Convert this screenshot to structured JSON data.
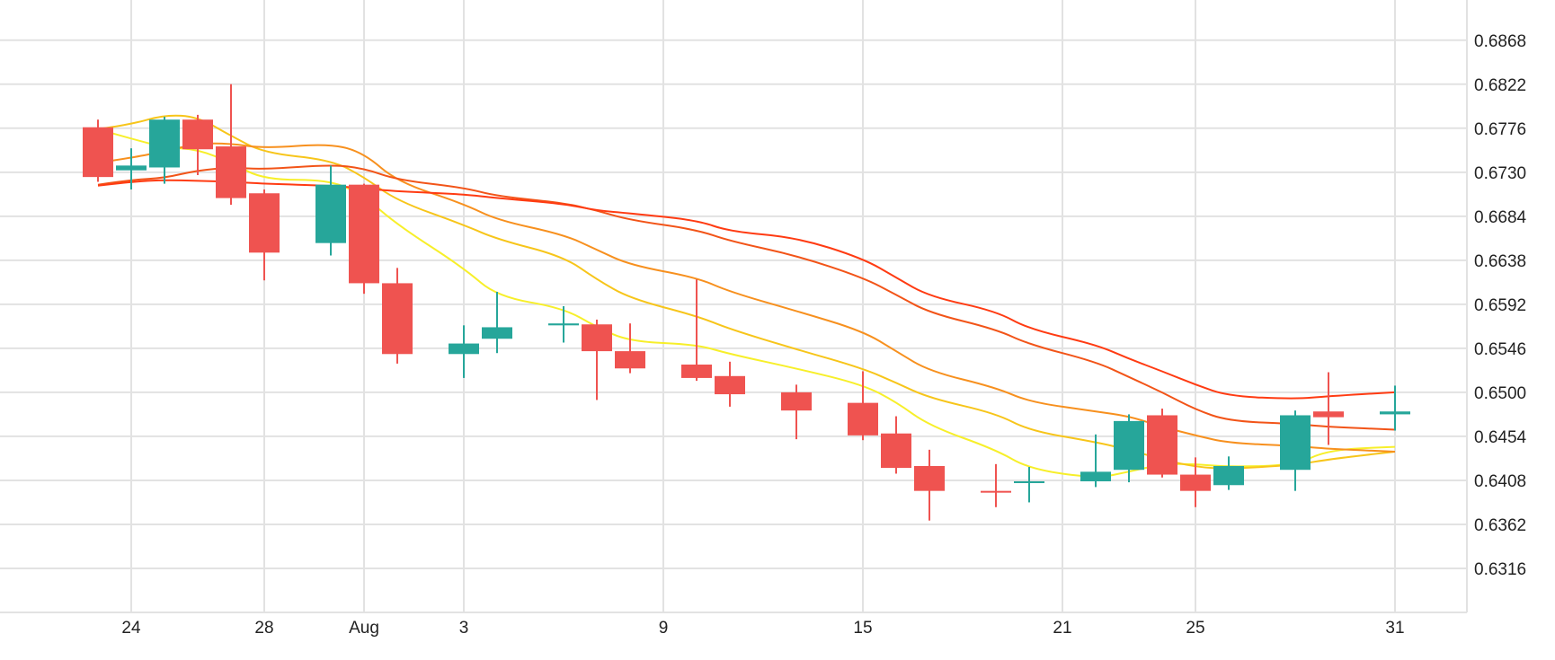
{
  "chart_data": {
    "type": "candlestick",
    "grid": true,
    "y_axis_side": "right",
    "y_ticks": [
      "0.6868",
      "0.6822",
      "0.6776",
      "0.6730",
      "0.6684",
      "0.6638",
      "0.6592",
      "0.6546",
      "0.6500",
      "0.6454",
      "0.6408",
      "0.6362",
      "0.6316"
    ],
    "x_ticks": [
      "24",
      "28",
      "Aug",
      "3",
      "9",
      "15",
      "21",
      "25",
      "31"
    ],
    "ylim": [
      0.627,
      0.691
    ],
    "colors": {
      "up": "#26a69a",
      "down": "#ef5350",
      "grid": "#e2e2e2"
    },
    "candles": [
      {
        "date": "Jul 23",
        "open": 0.6777,
        "high": 0.6785,
        "low": 0.672,
        "close": 0.6725
      },
      {
        "date": "Jul 24",
        "open": 0.6732,
        "high": 0.6755,
        "low": 0.6712,
        "close": 0.6737
      },
      {
        "date": "Jul 25",
        "open": 0.6735,
        "high": 0.6788,
        "low": 0.6718,
        "close": 0.6785
      },
      {
        "date": "Jul 26",
        "open": 0.6785,
        "high": 0.679,
        "low": 0.6727,
        "close": 0.6754
      },
      {
        "date": "Jul 27",
        "open": 0.6757,
        "high": 0.6822,
        "low": 0.6696,
        "close": 0.6703
      },
      {
        "date": "Jul 28",
        "open": 0.6708,
        "high": 0.6712,
        "low": 0.6617,
        "close": 0.6646
      },
      {
        "date": "Jul 30",
        "open": 0.6656,
        "high": 0.6737,
        "low": 0.6643,
        "close": 0.6717
      },
      {
        "date": "Jul 31",
        "open": 0.6717,
        "high": 0.6718,
        "low": 0.6603,
        "close": 0.6614
      },
      {
        "date": "Aug 1",
        "open": 0.6614,
        "high": 0.663,
        "low": 0.653,
        "close": 0.654
      },
      {
        "date": "Aug 3",
        "open": 0.654,
        "high": 0.657,
        "low": 0.6515,
        "close": 0.6551
      },
      {
        "date": "Aug 4",
        "open": 0.6556,
        "high": 0.6605,
        "low": 0.6541,
        "close": 0.6568
      },
      {
        "date": "Aug 6",
        "open": 0.657,
        "high": 0.659,
        "low": 0.6552,
        "close": 0.6572
      },
      {
        "date": "Aug 7",
        "open": 0.6571,
        "high": 0.6576,
        "low": 0.6492,
        "close": 0.6543
      },
      {
        "date": "Aug 8",
        "open": 0.6543,
        "high": 0.6572,
        "low": 0.652,
        "close": 0.6525
      },
      {
        "date": "Aug 10",
        "open": 0.6529,
        "high": 0.6618,
        "low": 0.6512,
        "close": 0.6515
      },
      {
        "date": "Aug 11",
        "open": 0.6517,
        "high": 0.6532,
        "low": 0.6485,
        "close": 0.6498
      },
      {
        "date": "Aug 13",
        "open": 0.65,
        "high": 0.6508,
        "low": 0.6451,
        "close": 0.6481
      },
      {
        "date": "Aug 15",
        "open": 0.6489,
        "high": 0.6522,
        "low": 0.645,
        "close": 0.6455
      },
      {
        "date": "Aug 16",
        "open": 0.6457,
        "high": 0.6475,
        "low": 0.6415,
        "close": 0.6421
      },
      {
        "date": "Aug 17",
        "open": 0.6423,
        "high": 0.644,
        "low": 0.6366,
        "close": 0.6397
      },
      {
        "date": "Aug 19",
        "open": 0.6397,
        "high": 0.6425,
        "low": 0.638,
        "close": 0.6396
      },
      {
        "date": "Aug 20",
        "open": 0.6406,
        "high": 0.6422,
        "low": 0.6385,
        "close": 0.6407
      },
      {
        "date": "Aug 22",
        "open": 0.6407,
        "high": 0.6456,
        "low": 0.6401,
        "close": 0.6417
      },
      {
        "date": "Aug 23",
        "open": 0.6419,
        "high": 0.6477,
        "low": 0.6406,
        "close": 0.647
      },
      {
        "date": "Aug 24",
        "open": 0.6476,
        "high": 0.6483,
        "low": 0.6411,
        "close": 0.6414
      },
      {
        "date": "Aug 25",
        "open": 0.6414,
        "high": 0.6432,
        "low": 0.638,
        "close": 0.6397
      },
      {
        "date": "Aug 26",
        "open": 0.6403,
        "high": 0.6433,
        "low": 0.6398,
        "close": 0.6423
      },
      {
        "date": "Aug 28",
        "open": 0.6419,
        "high": 0.6481,
        "low": 0.6397,
        "close": 0.6476
      },
      {
        "date": "Aug 29",
        "open": 0.648,
        "high": 0.6521,
        "low": 0.6445,
        "close": 0.6474
      },
      {
        "date": "Aug 31",
        "open": 0.6477,
        "high": 0.6507,
        "low": 0.646,
        "close": 0.648
      }
    ],
    "moving_averages": [
      {
        "color": "#f7ef2a",
        "values": [
          0.6775,
          0.6765,
          0.6756,
          0.6754,
          0.674,
          0.6722,
          0.6722,
          0.6705,
          0.6675,
          0.663,
          0.66,
          0.6588,
          0.6568,
          0.6553,
          0.655,
          0.654,
          0.6525,
          0.6508,
          0.649,
          0.6465,
          0.644,
          0.642,
          0.641,
          0.6417,
          0.6425,
          0.6425,
          0.6422,
          0.6424,
          0.644,
          0.6443
        ]
      },
      {
        "color": "#f7c51a",
        "values": [
          0.6775,
          0.678,
          0.679,
          0.6788,
          0.6768,
          0.675,
          0.6743,
          0.6725,
          0.67,
          0.6675,
          0.666,
          0.6642,
          0.6618,
          0.6598,
          0.658,
          0.6566,
          0.6545,
          0.6525,
          0.651,
          0.6494,
          0.6478,
          0.646,
          0.6448,
          0.644,
          0.643,
          0.6422,
          0.642,
          0.6424,
          0.643,
          0.6438
        ]
      },
      {
        "color": "#f7901e",
        "values": [
          0.674,
          0.6745,
          0.6752,
          0.676,
          0.676,
          0.6755,
          0.676,
          0.675,
          0.672,
          0.6697,
          0.668,
          0.6665,
          0.6649,
          0.6633,
          0.662,
          0.6605,
          0.6585,
          0.6564,
          0.6543,
          0.6522,
          0.6505,
          0.649,
          0.648,
          0.6475,
          0.6464,
          0.6455,
          0.6447,
          0.6444,
          0.6441,
          0.6438
        ]
      },
      {
        "color": "#f25418",
        "values": [
          0.6717,
          0.6722,
          0.6724,
          0.6732,
          0.6735,
          0.6733,
          0.6738,
          0.6734,
          0.6722,
          0.6714,
          0.6705,
          0.6698,
          0.669,
          0.668,
          0.667,
          0.6658,
          0.6643,
          0.662,
          0.6602,
          0.6583,
          0.6566,
          0.655,
          0.6532,
          0.6516,
          0.65,
          0.6482,
          0.647,
          0.6467,
          0.6464,
          0.6461
        ]
      },
      {
        "color": "#ff3b12",
        "values": [
          0.6716,
          0.672,
          0.6722,
          0.6721,
          0.672,
          0.6718,
          0.6716,
          0.6713,
          0.671,
          0.6707,
          0.6703,
          0.6697,
          0.669,
          0.6687,
          0.668,
          0.6668,
          0.6662,
          0.664,
          0.662,
          0.66,
          0.6585,
          0.6566,
          0.655,
          0.6535,
          0.6522,
          0.6508,
          0.6496,
          0.6493,
          0.6496,
          0.65
        ]
      }
    ]
  }
}
